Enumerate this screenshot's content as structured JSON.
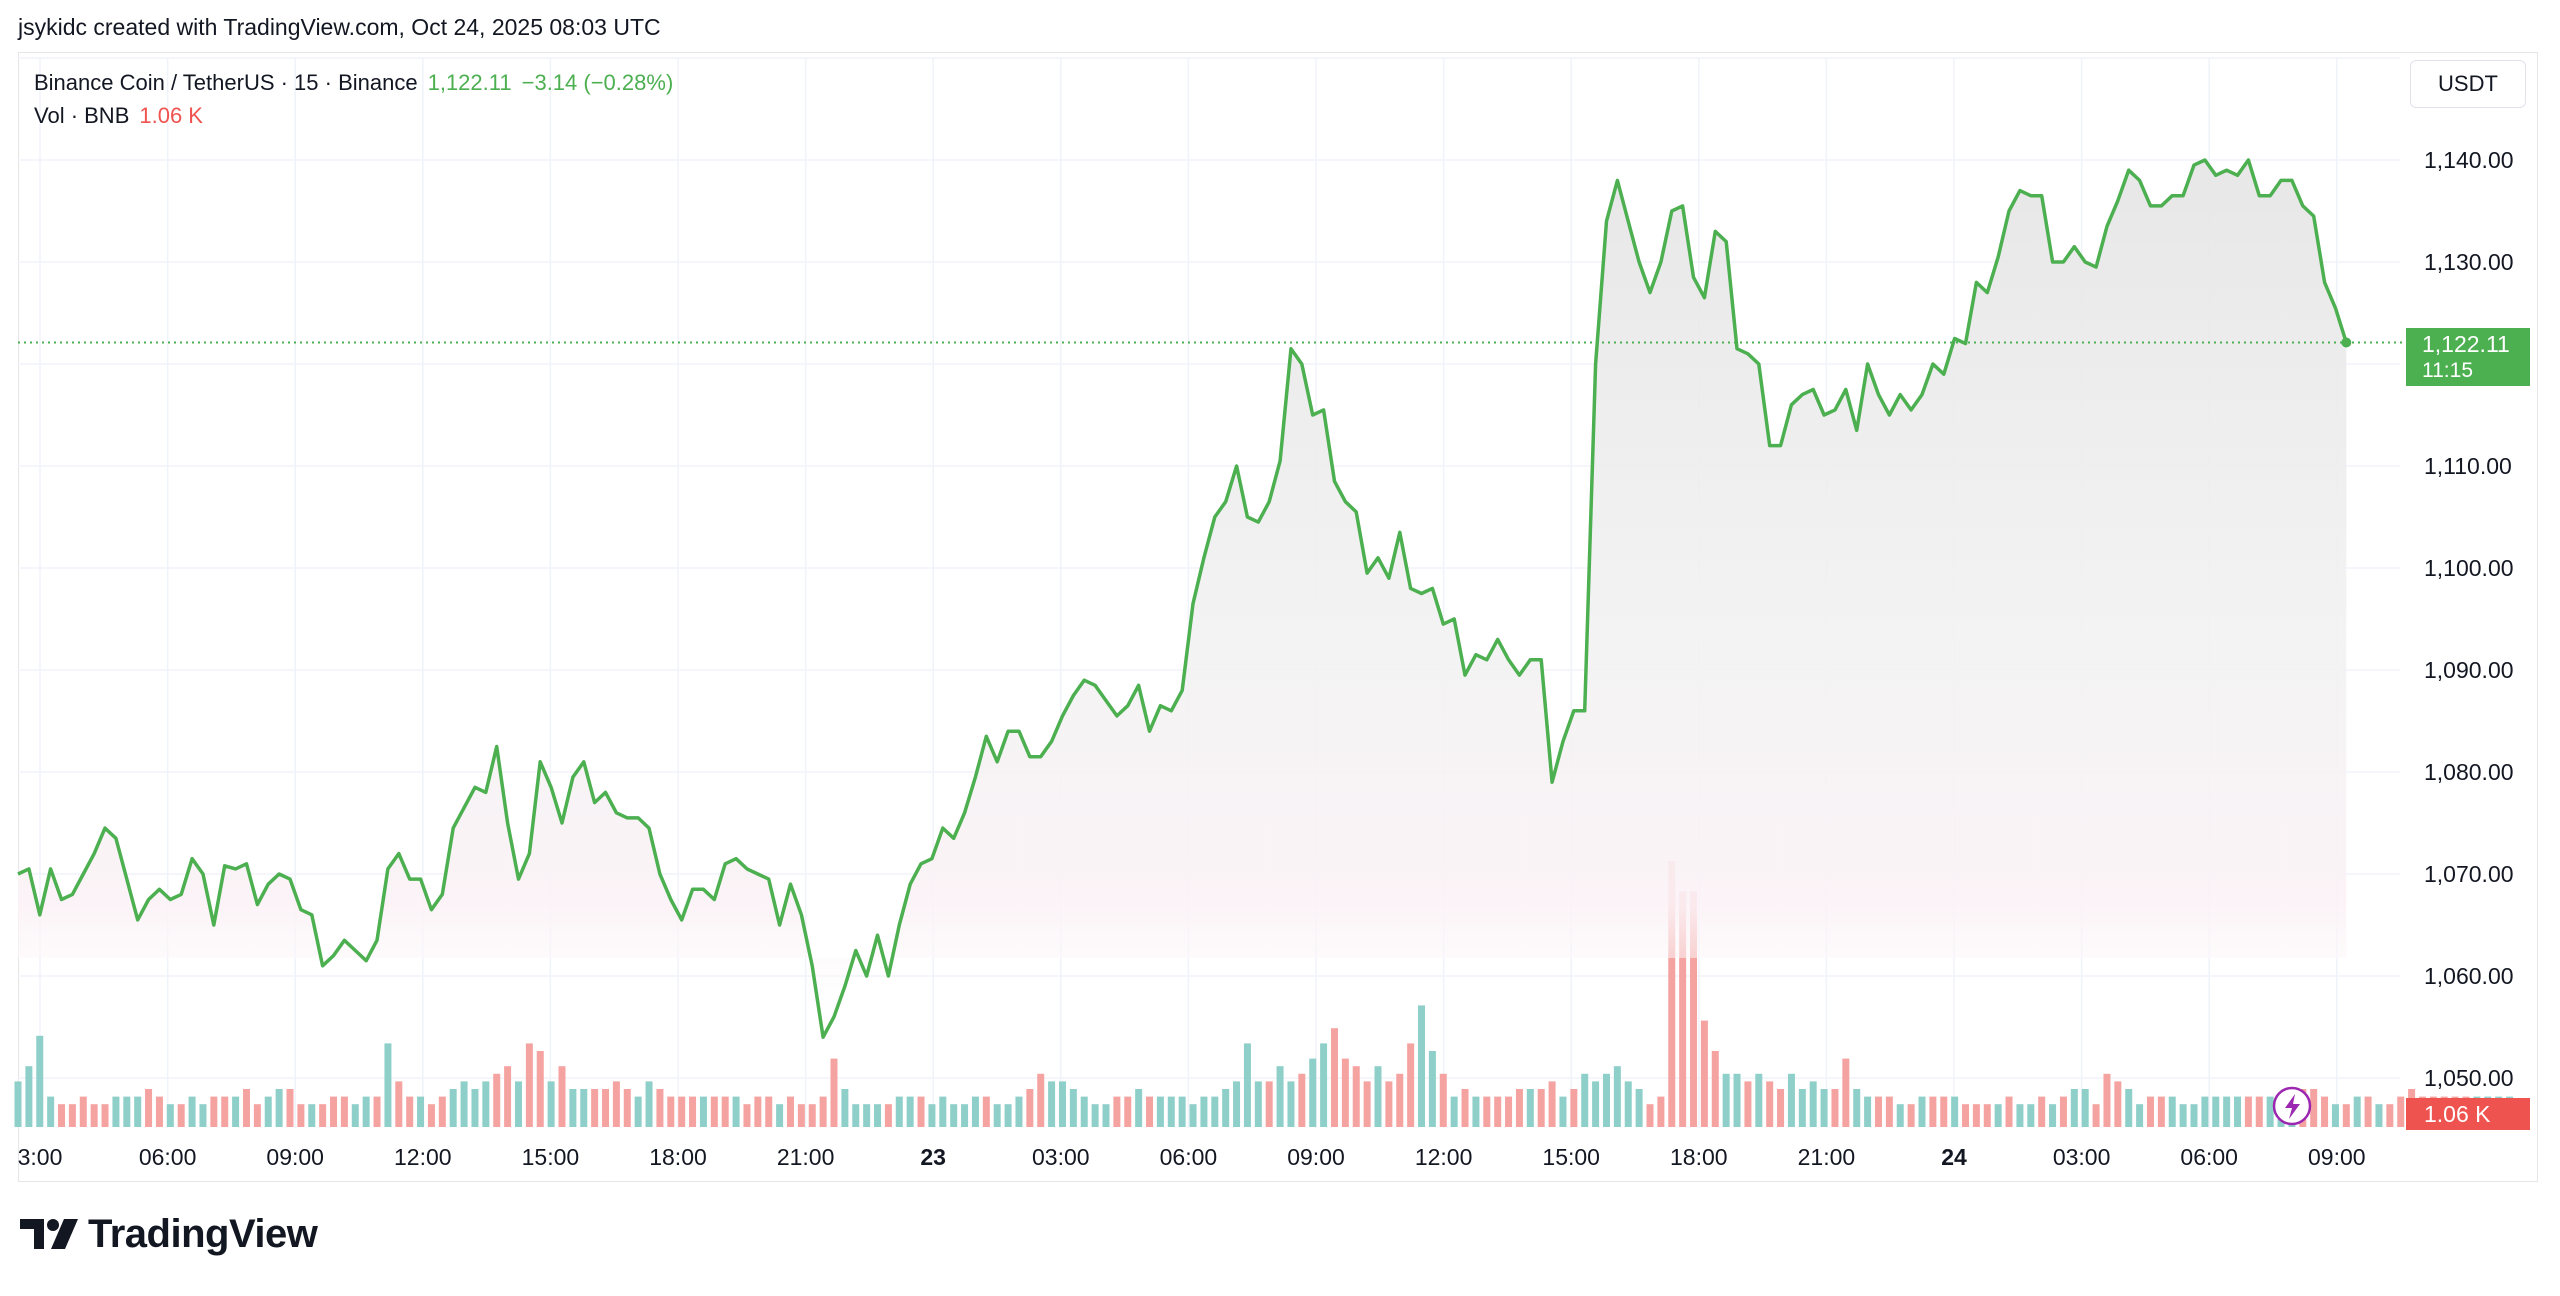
{
  "attribution": "jsykidc created with TradingView.com, Oct 24, 2025 08:03 UTC",
  "legend": {
    "symbol": "Binance Coin / TetherUS · 15 · Binance",
    "last": "1,122.11",
    "change": "−3.14 (−0.28%)",
    "vol_label": "Vol · BNB",
    "vol_value": "1.06 K"
  },
  "currency_button": "USDT",
  "brand": "TradingView",
  "colors": {
    "line": "#4caf50",
    "vol_up": "#8fcfc9",
    "vol_down": "#f4a3a1",
    "last_price_bg": "#4caf50",
    "vol_badge_bg": "#ef5350"
  },
  "chart_data": {
    "type": "line",
    "x_ticks": [
      "3:00",
      "06:00",
      "09:00",
      "12:00",
      "15:00",
      "18:00",
      "21:00",
      "23",
      "03:00",
      "06:00",
      "09:00",
      "12:00",
      "15:00",
      "18:00",
      "21:00",
      "24",
      "03:00",
      "06:00",
      "09:00"
    ],
    "x_tick_bold": [
      "23",
      "24"
    ],
    "y_ticks": [
      "1,140.00",
      "1,130.00",
      "1,110.00",
      "1,100.00",
      "1,090.00",
      "1,080.00",
      "1,070.00",
      "1,060.00",
      "1,050.00"
    ],
    "y_tick_values": [
      1140,
      1130,
      1110,
      1100,
      1090,
      1080,
      1070,
      1060,
      1050
    ],
    "ylim": [
      1045,
      1153
    ],
    "last_price_label": "1,122.11",
    "last_price_value": 1122.11,
    "countdown": "11:15",
    "volume_badge": "1.06 K",
    "series": [
      {
        "type": "price",
        "values": [
          1070,
          1070.5,
          1066,
          1070.5,
          1067.5,
          1068,
          1070,
          1072,
          1074.5,
          1073.5,
          1069.5,
          1065.5,
          1067.5,
          1068.5,
          1067.5,
          1068,
          1071.5,
          1070,
          1065,
          1070.8,
          1070.5,
          1071,
          1067,
          1069,
          1070,
          1069.5,
          1066.5,
          1066,
          1061,
          1062,
          1063.5,
          1062.5,
          1061.5,
          1063.5,
          1070.5,
          1072,
          1069.5,
          1069.5,
          1066.5,
          1068,
          1074.5,
          1076.5,
          1078.5,
          1078,
          1082.5,
          1075,
          1069.5,
          1072,
          1081,
          1078.5,
          1075,
          1079.5,
          1081,
          1077,
          1078,
          1076,
          1075.5,
          1075.5,
          1074.5,
          1070,
          1067.5,
          1065.5,
          1068.5,
          1068.5,
          1067.5,
          1071,
          1071.5,
          1070.5,
          1070,
          1069.5,
          1065,
          1069,
          1066,
          1061,
          1054,
          1056,
          1059,
          1062.5,
          1060,
          1064,
          1060,
          1065,
          1069,
          1071,
          1071.5,
          1074.5,
          1073.5,
          1076,
          1079.5,
          1083.5,
          1081,
          1084,
          1084,
          1081.5,
          1081.5,
          1083,
          1085.5,
          1087.5,
          1089,
          1088.5,
          1087,
          1085.5,
          1086.5,
          1088.5,
          1084,
          1086.5,
          1086,
          1088,
          1096.5,
          1101,
          1105,
          1106.5,
          1110,
          1105,
          1104.5,
          1106.5,
          1110.5,
          1121.5,
          1120,
          1115,
          1115.5,
          1108.5,
          1106.5,
          1105.5,
          1099.5,
          1101,
          1099,
          1103.5,
          1098,
          1097.5,
          1098,
          1094.5,
          1095,
          1089.5,
          1091.5,
          1091,
          1093,
          1091,
          1089.5,
          1091,
          1091,
          1079,
          1083,
          1086,
          1086,
          1120,
          1134,
          1138,
          1134,
          1130,
          1127,
          1130,
          1135,
          1135.5,
          1128.5,
          1126.5,
          1133,
          1132,
          1121.5,
          1121,
          1120,
          1112,
          1112,
          1116,
          1117,
          1117.5,
          1115,
          1115.5,
          1117.5,
          1113.5,
          1120,
          1117,
          1115,
          1117,
          1115.5,
          1117,
          1120,
          1119,
          1122.5,
          1122,
          1128,
          1127,
          1130.5,
          1135,
          1137,
          1136.5,
          1136.5,
          1130,
          1130,
          1131.5,
          1130,
          1129.5,
          1133.5,
          1136,
          1139,
          1138,
          1135.5,
          1135.5,
          1136.5,
          1136.5,
          1139.5,
          1140,
          1138.5,
          1139,
          1138.5,
          1140,
          1136.5,
          1136.5,
          1138,
          1138,
          1135.5,
          1134.5,
          1128,
          1125.5,
          1122.11
        ]
      },
      {
        "type": "volume",
        "values": [
          6,
          8,
          12,
          4,
          3,
          3,
          4,
          3,
          3,
          4,
          4,
          4,
          5,
          4,
          3,
          3,
          4,
          3,
          4,
          4,
          4,
          5,
          3,
          4,
          5,
          5,
          3,
          3,
          3,
          4,
          4,
          3,
          4,
          4,
          11,
          6,
          4,
          4,
          3,
          4,
          5,
          6,
          5,
          6,
          7,
          8,
          6,
          11,
          10,
          6,
          8,
          5,
          5,
          5,
          5,
          6,
          5,
          4,
          6,
          5,
          4,
          4,
          4,
          4,
          4,
          4,
          4,
          3,
          4,
          4,
          3,
          4,
          3,
          3,
          4,
          9,
          5,
          3,
          3,
          3,
          3,
          4,
          4,
          4,
          3,
          4,
          3,
          3,
          4,
          4,
          3,
          3,
          4,
          5,
          7,
          6,
          6,
          5,
          4,
          3,
          3,
          4,
          4,
          5,
          4,
          4,
          4,
          4,
          3,
          4,
          4,
          5,
          6,
          11,
          6,
          6,
          8,
          6,
          7,
          9,
          11,
          13,
          9,
          8,
          6,
          8,
          6,
          7,
          11,
          16,
          10,
          7,
          4,
          5,
          4,
          4,
          4,
          4,
          5,
          5,
          5,
          6,
          4,
          5,
          7,
          6,
          7,
          8,
          6,
          5,
          3,
          4,
          35,
          31,
          31,
          14,
          10,
          7,
          7,
          6,
          7,
          6,
          5,
          7,
          5,
          6,
          5,
          5,
          9,
          5,
          4,
          4,
          4,
          3,
          3,
          4,
          4,
          4,
          4,
          3,
          3,
          3,
          3,
          4,
          3,
          3,
          4,
          3,
          4,
          5,
          5,
          3,
          7,
          6,
          5,
          3,
          4,
          4,
          4,
          3,
          3,
          4,
          4,
          4,
          4,
          4,
          4,
          4,
          3,
          4,
          5,
          5,
          4,
          3,
          3,
          4,
          4,
          3,
          3,
          4,
          5,
          4,
          4,
          4,
          4,
          4,
          4,
          4,
          4,
          4,
          3
        ],
        "down": [
          0,
          0,
          0,
          0,
          1,
          1,
          1,
          1,
          1,
          0,
          0,
          0,
          1,
          1,
          0,
          1,
          0,
          0,
          1,
          1,
          0,
          1,
          1,
          0,
          0,
          1,
          1,
          0,
          1,
          1,
          1,
          0,
          0,
          1,
          0,
          1,
          1,
          0,
          1,
          1,
          0,
          0,
          0,
          0,
          1,
          1,
          0,
          1,
          1,
          0,
          1,
          0,
          0,
          1,
          1,
          1,
          1,
          0,
          0,
          1,
          1,
          1,
          1,
          0,
          1,
          1,
          0,
          1,
          1,
          1,
          0,
          1,
          1,
          1,
          1,
          1,
          0,
          0,
          0,
          0,
          1,
          0,
          0,
          1,
          0,
          0,
          0,
          0,
          0,
          1,
          0,
          0,
          0,
          1,
          1,
          0,
          0,
          0,
          0,
          0,
          0,
          1,
          1,
          0,
          1,
          0,
          0,
          0,
          0,
          0,
          0,
          0,
          0,
          0,
          0,
          1,
          0,
          0,
          1,
          0,
          0,
          1,
          1,
          1,
          1,
          0,
          1,
          1,
          1,
          0,
          0,
          1,
          0,
          1,
          0,
          1,
          1,
          1,
          1,
          0,
          1,
          1,
          0,
          1,
          0,
          0,
          0,
          0,
          0,
          0,
          1,
          1,
          1,
          1,
          1,
          1,
          1,
          0,
          0,
          1,
          0,
          1,
          1,
          0,
          0,
          0,
          0,
          1,
          1,
          0,
          0,
          1,
          1,
          0,
          1,
          0,
          1,
          1,
          0,
          1,
          1,
          1,
          0,
          1,
          0,
          0,
          1,
          0,
          1,
          0,
          0,
          1,
          1,
          1,
          0,
          0,
          1,
          1,
          0,
          0,
          0,
          0,
          0,
          0,
          0,
          1,
          1,
          0,
          0,
          0,
          1,
          1,
          1,
          0,
          1,
          0,
          1,
          0,
          1,
          1,
          1,
          1,
          1,
          1,
          1,
          1
        ]
      }
    ]
  }
}
